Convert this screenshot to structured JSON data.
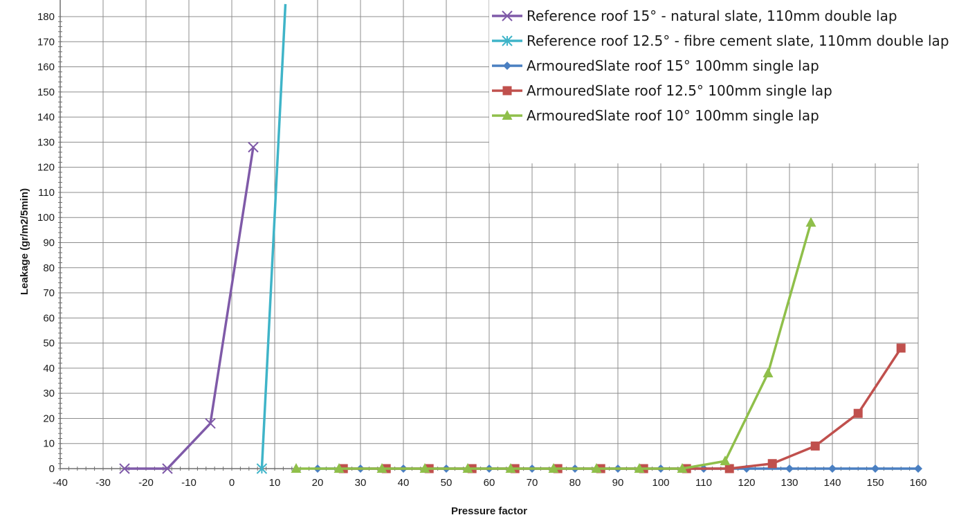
{
  "chart_data": {
    "type": "line",
    "title": "",
    "xlabel": "Pressure factor",
    "ylabel": "Leakage (gr/m2/5min)",
    "xlim": [
      -40,
      160
    ],
    "ylim": [
      0,
      180
    ],
    "x_major": 10,
    "y_major": 10,
    "grid": true,
    "legend_position": "top-right",
    "series": [
      {
        "name": "Reference roof 15° - natural slate, 110mm double lap",
        "color": "#7f5aa8",
        "marker": "x",
        "x": [
          -25,
          -15,
          -5,
          5
        ],
        "y": [
          0,
          0,
          18,
          128
        ]
      },
      {
        "name": "Reference roof 12.5° - fibre cement slate, 110mm double lap",
        "color": "#3fb4c8",
        "marker": "star",
        "x": [
          7,
          12.5
        ],
        "y": [
          0,
          185
        ]
      },
      {
        "name": "ArmouredSlate roof 15° 100mm single lap",
        "color": "#4a7fc1",
        "marker": "diamond",
        "x": [
          20,
          30,
          40,
          50,
          60,
          70,
          80,
          90,
          100,
          110,
          120,
          130,
          140,
          150,
          160
        ],
        "y": [
          0,
          0,
          0,
          0,
          0,
          0,
          0,
          0,
          0,
          0,
          0,
          0,
          0,
          0,
          0
        ]
      },
      {
        "name": "ArmouredSlate roof 12.5° 100mm single lap",
        "color": "#c0504d",
        "marker": "square",
        "x": [
          26,
          36,
          46,
          56,
          66,
          76,
          86,
          96,
          106,
          116,
          126,
          136,
          146,
          156
        ],
        "y": [
          0,
          0,
          0,
          0,
          0,
          0,
          0,
          0,
          0,
          0,
          2,
          9,
          22,
          48
        ]
      },
      {
        "name": "ArmouredSlate roof 10° 100mm single lap",
        "color": "#8fbf4a",
        "marker": "triangle",
        "x": [
          15,
          25,
          35,
          45,
          55,
          65,
          75,
          85,
          95,
          105,
          115,
          125,
          135
        ],
        "y": [
          0,
          0,
          0,
          0,
          0,
          0,
          0,
          0,
          0,
          0,
          3,
          38,
          98
        ]
      }
    ]
  }
}
